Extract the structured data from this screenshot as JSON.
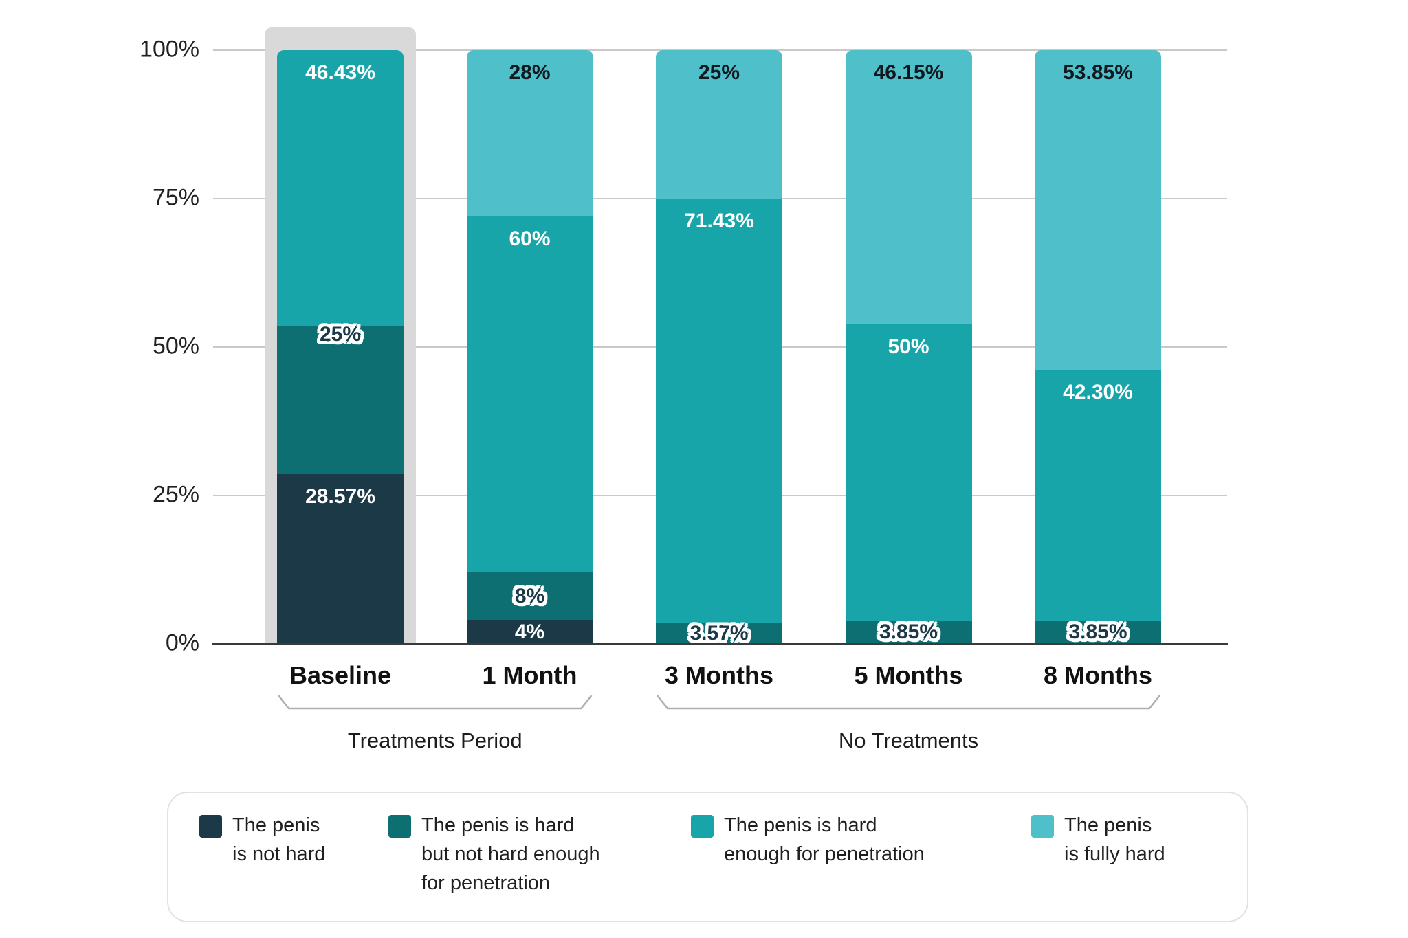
{
  "chart_data": {
    "type": "bar",
    "subtype": "stacked-percent",
    "title": "",
    "xlabel": "",
    "ylabel": "",
    "ylim": [
      0,
      100
    ],
    "yticks": [
      "0%",
      "25%",
      "50%",
      "75%",
      "100%"
    ],
    "grid": "horizontal",
    "legend_position": "bottom",
    "categories": [
      "Baseline",
      "1 Month",
      "3 Months",
      "5 Months",
      "8 Months"
    ],
    "groups": [
      {
        "label": "Treatments Period",
        "from": 0,
        "to": 1
      },
      {
        "label": "No Treatments",
        "from": 2,
        "to": 4
      }
    ],
    "highlight_category": 0,
    "series": [
      {
        "name": "The penis is not hard",
        "color": "#1B3946",
        "label_style": "white",
        "values": [
          28.57,
          4,
          0,
          0,
          0
        ],
        "labels": [
          "28.57%",
          "4%",
          "",
          "",
          ""
        ]
      },
      {
        "name": "The penis is hard but not hard enough for penetration",
        "color": "#0E6F72",
        "label_style": "outline",
        "values": [
          25,
          8,
          3.57,
          3.85,
          3.85
        ],
        "labels": [
          "25%",
          "8%",
          "3.57%",
          "3.85%",
          "3.85%"
        ]
      },
      {
        "name": "The penis is hard enough for penetration",
        "color": "#18A5AA",
        "label_style": "white",
        "values": [
          46.43,
          60,
          71.43,
          50,
          42.3
        ],
        "labels": [
          "46.43%",
          "60%",
          "71.43%",
          "50%",
          "42.30%"
        ]
      },
      {
        "name": "The penis is fully hard",
        "color": "#4FBFCA",
        "label_style": "dark",
        "values": [
          0,
          28,
          25,
          46.15,
          53.85
        ],
        "labels": [
          "",
          "28%",
          "25%",
          "46.15%",
          "53.85%"
        ]
      }
    ]
  },
  "legend": {
    "items": [
      {
        "series": 0,
        "lines": [
          "The penis",
          "is not hard"
        ]
      },
      {
        "series": 1,
        "lines": [
          "The penis is hard",
          "but not hard enough",
          "for penetration"
        ]
      },
      {
        "series": 2,
        "lines": [
          "The penis is hard",
          "enough for penetration"
        ]
      },
      {
        "series": 3,
        "lines": [
          "The penis",
          "is fully hard"
        ]
      }
    ]
  },
  "colors": {
    "bar_highlight_backdrop": "#D9D9D9",
    "gridline": "#C9C9C9",
    "axis_line": "#3A3A3A",
    "bracket": "#AFAFAF",
    "tick_text": "#212121"
  }
}
